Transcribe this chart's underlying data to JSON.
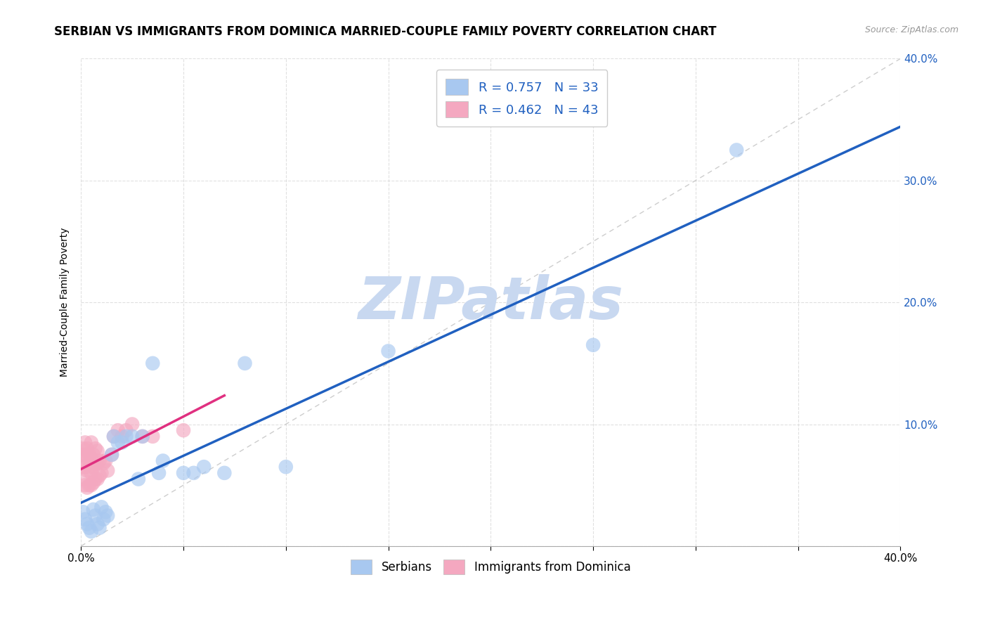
{
  "title": "SERBIAN VS IMMIGRANTS FROM DOMINICA MARRIED-COUPLE FAMILY POVERTY CORRELATION CHART",
  "source": "Source: ZipAtlas.com",
  "ylabel": "Married-Couple Family Poverty",
  "legend_label1": "Serbians",
  "legend_label2": "Immigrants from Dominica",
  "r1": 0.757,
  "n1": 33,
  "r2": 0.462,
  "n2": 43,
  "color1": "#A8C8F0",
  "color2": "#F4A8C0",
  "line_color1": "#2060C0",
  "line_color2": "#E03080",
  "diag_color": "#C8C8C8",
  "xlim": [
    0.0,
    0.4
  ],
  "ylim": [
    0.0,
    0.4
  ],
  "watermark": "ZIPatlas",
  "bg_color": "#FFFFFF",
  "grid_color": "#DDDDDD",
  "title_fontsize": 12,
  "axis_fontsize": 10,
  "tick_fontsize": 11,
  "watermark_color": "#C8D8F0",
  "watermark_fontsize": 60,
  "right_yticks": [
    0.0,
    0.1,
    0.2,
    0.3,
    0.4
  ],
  "right_ytick_labels": [
    "",
    "10.0%",
    "20.0%",
    "30.0%",
    "40.0%"
  ],
  "serbian_x": [
    0.001,
    0.002,
    0.003,
    0.004,
    0.005,
    0.006,
    0.007,
    0.008,
    0.009,
    0.01,
    0.011,
    0.012,
    0.013,
    0.015,
    0.016,
    0.018,
    0.02,
    0.022,
    0.025,
    0.028,
    0.03,
    0.035,
    0.038,
    0.04,
    0.05,
    0.055,
    0.06,
    0.07,
    0.08,
    0.1,
    0.15,
    0.25,
    0.32
  ],
  "serbian_y": [
    0.028,
    0.022,
    0.018,
    0.015,
    0.012,
    0.03,
    0.025,
    0.018,
    0.015,
    0.032,
    0.022,
    0.028,
    0.025,
    0.075,
    0.09,
    0.085,
    0.085,
    0.09,
    0.09,
    0.055,
    0.09,
    0.15,
    0.06,
    0.07,
    0.06,
    0.06,
    0.065,
    0.06,
    0.15,
    0.065,
    0.16,
    0.165,
    0.325
  ],
  "dominica_x": [
    0.001,
    0.001,
    0.001,
    0.001,
    0.002,
    0.002,
    0.002,
    0.002,
    0.003,
    0.003,
    0.003,
    0.003,
    0.004,
    0.004,
    0.004,
    0.005,
    0.005,
    0.005,
    0.005,
    0.006,
    0.006,
    0.006,
    0.007,
    0.007,
    0.007,
    0.008,
    0.008,
    0.008,
    0.009,
    0.009,
    0.01,
    0.011,
    0.012,
    0.013,
    0.015,
    0.016,
    0.018,
    0.02,
    0.022,
    0.025,
    0.03,
    0.035,
    0.05
  ],
  "dominica_y": [
    0.055,
    0.065,
    0.075,
    0.08,
    0.05,
    0.065,
    0.075,
    0.085,
    0.048,
    0.062,
    0.072,
    0.08,
    0.05,
    0.065,
    0.075,
    0.05,
    0.06,
    0.072,
    0.085,
    0.052,
    0.065,
    0.075,
    0.055,
    0.068,
    0.08,
    0.055,
    0.068,
    0.078,
    0.058,
    0.07,
    0.06,
    0.068,
    0.07,
    0.062,
    0.075,
    0.09,
    0.095,
    0.09,
    0.095,
    0.1,
    0.09,
    0.09,
    0.095
  ]
}
